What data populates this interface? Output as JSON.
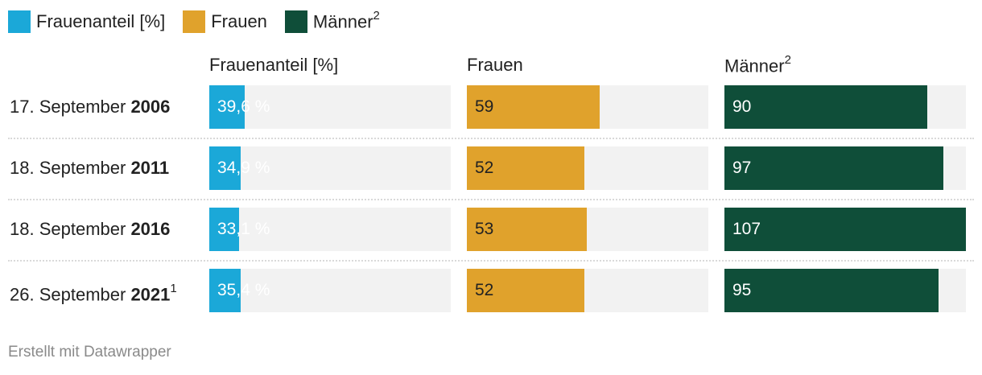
{
  "legend": [
    {
      "label": "Frauenanteil [%]",
      "sup": "",
      "color": "#1ba8d8"
    },
    {
      "label": "Frauen",
      "sup": "",
      "color": "#e0a22c"
    },
    {
      "label": "Männer",
      "sup": "2",
      "color": "#0f4e39"
    }
  ],
  "columns": [
    {
      "label": "Frauenanteil [%]",
      "sup": ""
    },
    {
      "label": "Frauen",
      "sup": ""
    },
    {
      "label": "Männer",
      "sup": "2"
    }
  ],
  "footer": "Erstellt mit Datawrapper",
  "chart_data": {
    "type": "bar",
    "categories": [
      "17. September 2006",
      "18. September 2011",
      "18. September 2016",
      "26. September 2021"
    ],
    "rows": [
      {
        "prefix": "17. September ",
        "year": "2006",
        "sup": ""
      },
      {
        "prefix": "18. September ",
        "year": "2011",
        "sup": ""
      },
      {
        "prefix": "18. September ",
        "year": "2016",
        "sup": ""
      },
      {
        "prefix": "26. September ",
        "year": "2021",
        "sup": "1"
      }
    ],
    "series": [
      {
        "name": "Frauenanteil [%]",
        "values": [
          39.6,
          34.9,
          33.1,
          35.4
        ],
        "labels": [
          "39,6 %",
          "34,9 %",
          "33,1 %",
          "35,4 %"
        ],
        "max": 270,
        "color": "#1ba8d8",
        "text_color": "#ffffff"
      },
      {
        "name": "Frauen",
        "values": [
          59,
          52,
          53,
          52
        ],
        "labels": [
          "59",
          "52",
          "53",
          "52"
        ],
        "max": 107,
        "color": "#e0a22c",
        "text_color": "#222222"
      },
      {
        "name": "Männer",
        "values": [
          90,
          97,
          107,
          95
        ],
        "labels": [
          "90",
          "97",
          "107",
          "95"
        ],
        "max": 107,
        "color": "#0f4e39",
        "text_color": "#ffffff"
      }
    ],
    "track_color": "#f2f2f2"
  }
}
